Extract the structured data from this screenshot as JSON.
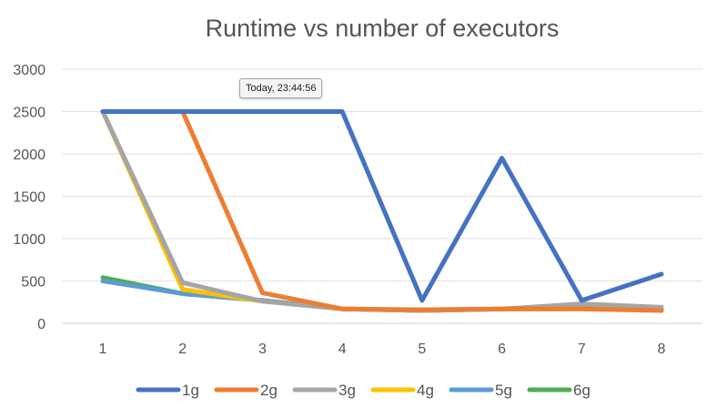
{
  "tooltip": {
    "text": "Today, 23:44:56"
  },
  "chart_data": {
    "type": "line",
    "title": "Runtime vs number of executors",
    "xlabel": "",
    "ylabel": "",
    "categories": [
      "1",
      "2",
      "3",
      "4",
      "5",
      "6",
      "7",
      "8"
    ],
    "ylim": [
      0,
      3000
    ],
    "yticks": [
      0,
      500,
      1000,
      1500,
      2000,
      2500,
      3000
    ],
    "grid": true,
    "legend": "bottom",
    "series": [
      {
        "name": "1g",
        "color": "#4472C4",
        "values": [
          2500,
          2500,
          2500,
          2500,
          270,
          1950,
          270,
          580
        ]
      },
      {
        "name": "2g",
        "color": "#ED7D31",
        "values": [
          2500,
          2500,
          360,
          170,
          160,
          170,
          170,
          150
        ]
      },
      {
        "name": "3g",
        "color": "#A5A5A5",
        "values": [
          2500,
          480,
          260,
          170,
          150,
          170,
          230,
          190
        ]
      },
      {
        "name": "4g",
        "color": "#FFC000",
        "values": [
          2500,
          400,
          260,
          170,
          150,
          170,
          170,
          160
        ]
      },
      {
        "name": "5g",
        "color": "#5B9BD5",
        "values": [
          500,
          350,
          270,
          170,
          150,
          170,
          180,
          170
        ]
      },
      {
        "name": "6g",
        "color": "#4CAF50",
        "values": [
          540,
          350,
          270,
          170,
          150,
          170,
          180,
          170
        ]
      }
    ]
  }
}
